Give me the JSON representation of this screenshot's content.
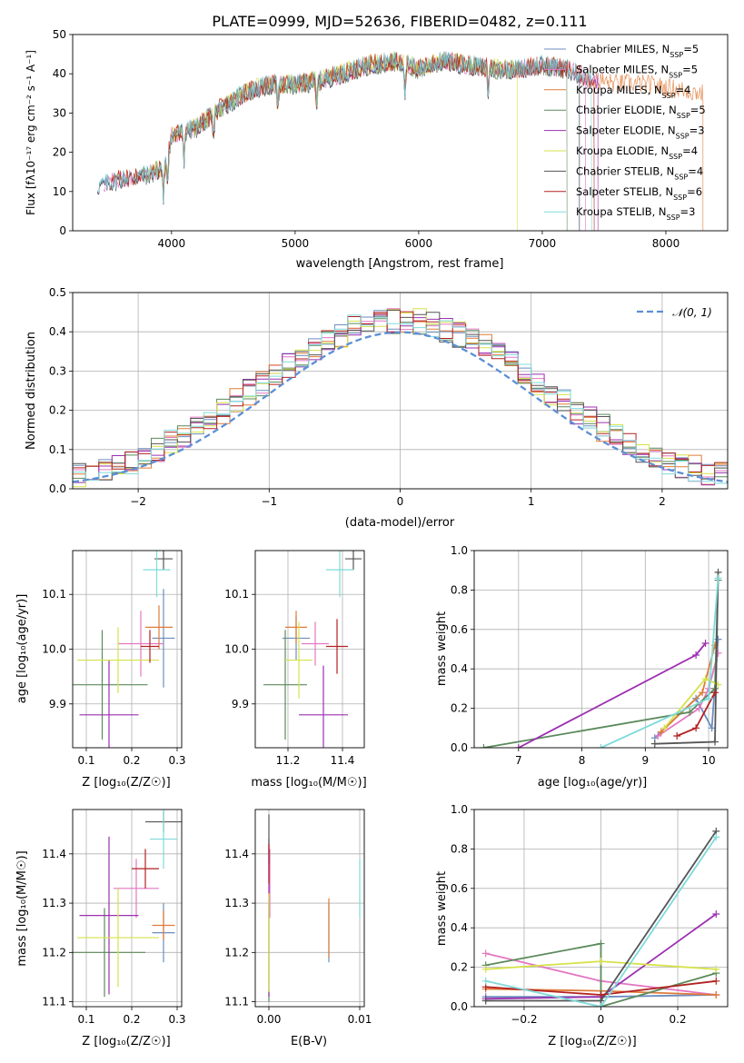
{
  "colors": [
    "#6c8ebf",
    "#e377c2",
    "#e07b39",
    "#5b8a5b",
    "#9b30b0",
    "#d6e24a",
    "#555555",
    "#b22222",
    "#7fdada"
  ],
  "chart_data": [
    {
      "id": "spectrum",
      "type": "line",
      "title": "PLATE=0999, MJD=52636, FIBERID=0482, z=0.111",
      "xlabel": "wavelength [Angstrom, rest frame]",
      "ylabel": "Flux [fλ10⁻¹⁷ erg cm⁻² s⁻¹ A⁻¹]",
      "xlim": [
        3200,
        8500
      ],
      "ylim": [
        0,
        50
      ],
      "xticks": [
        4000,
        5000,
        6000,
        7000,
        8000
      ],
      "yticks": [
        0,
        10,
        20,
        30,
        40,
        50
      ],
      "legend_position": "top-right",
      "legend": [
        "Chabrier MILES, N_SSP=5",
        "Salpeter MILES, N_SSP=5",
        "Kroupa MILES, N_SSP=4",
        "Chabrier ELODIE, N_SSP=5",
        "Salpeter ELODIE, N_SSP=3",
        "Kroupa ELODIE, N_SSP=4",
        "Chabrier STELIB, N_SSP=4",
        "Salpeter STELIB, N_SSP=6",
        "Kroupa STELIB, N_SSP=3"
      ],
      "spectrum_anchors": [
        [
          3400,
          11
        ],
        [
          3600,
          13
        ],
        [
          3800,
          14
        ],
        [
          3950,
          16
        ],
        [
          4000,
          24
        ],
        [
          4200,
          26
        ],
        [
          4400,
          31
        ],
        [
          4600,
          35
        ],
        [
          4800,
          37
        ],
        [
          5000,
          37
        ],
        [
          5200,
          38
        ],
        [
          5400,
          40
        ],
        [
          5600,
          42
        ],
        [
          5800,
          43
        ],
        [
          6000,
          41
        ],
        [
          6200,
          43
        ],
        [
          6400,
          42
        ],
        [
          6600,
          41
        ],
        [
          6800,
          41
        ],
        [
          7000,
          42
        ],
        [
          7200,
          41
        ],
        [
          7400,
          38
        ],
        [
          7600,
          37
        ],
        [
          7800,
          37
        ],
        [
          8000,
          36
        ],
        [
          8200,
          35
        ],
        [
          8400,
          34
        ]
      ],
      "series_ranges": [
        [
          3400,
          7300
        ],
        [
          3450,
          7350
        ],
        [
          3500,
          8300
        ],
        [
          3700,
          7200
        ],
        [
          3400,
          7450
        ],
        [
          3800,
          6800
        ],
        [
          3400,
          7300
        ],
        [
          3500,
          7420
        ],
        [
          3400,
          7400
        ]
      ]
    },
    {
      "id": "residual-histogram",
      "type": "bar",
      "xlabel": "(data-model)/error",
      "ylabel": "Normed distribution",
      "xlim": [
        -2.5,
        2.5
      ],
      "ylim": [
        0,
        0.5
      ],
      "xticks": [
        -2,
        -1,
        0,
        1,
        2
      ],
      "yticks": [
        0.0,
        0.1,
        0.2,
        0.3,
        0.4,
        0.5
      ],
      "legend": [
        "𝒩(0, 1)"
      ],
      "legend_position": "top-right",
      "bin_width": 0.1,
      "series_count": 9,
      "grid": true
    },
    {
      "id": "age-vs-Z",
      "type": "scatter",
      "xlabel": "Z [log₁₀(Z/Z☉)]",
      "ylabel": "age  [log₁₀(age/yr)]",
      "xlim": [
        0.07,
        0.31
      ],
      "ylim": [
        9.82,
        10.18
      ],
      "xticks": [
        0.1,
        0.2,
        0.3
      ],
      "yticks": [
        9.9,
        10.0,
        10.1
      ],
      "points": [
        {
          "x": 0.27,
          "xerr": 0.025,
          "y": 10.02,
          "yerr": 0.09
        },
        {
          "x": 0.22,
          "xerr": 0.05,
          "y": 10.01,
          "yerr": 0.06
        },
        {
          "x": 0.26,
          "xerr": 0.03,
          "y": 10.04,
          "yerr": 0.04
        },
        {
          "x": 0.135,
          "xerr": 0.1,
          "y": 9.935,
          "yerr": 0.1
        },
        {
          "x": 0.15,
          "xerr": 0.065,
          "y": 9.88,
          "yerr": 0.1
        },
        {
          "x": 0.17,
          "xerr": 0.09,
          "y": 9.98,
          "yerr": 0.06
        },
        {
          "x": 0.27,
          "xerr": 0.02,
          "y": 10.165,
          "yerr": 0.02
        },
        {
          "x": 0.24,
          "xerr": 0.02,
          "y": 10.005,
          "yerr": 0.03
        },
        {
          "x": 0.255,
          "xerr": 0.03,
          "y": 10.145,
          "yerr": 0.05
        }
      ]
    },
    {
      "id": "age-vs-mass",
      "type": "scatter",
      "xlabel": "mass [log₁₀(M/M☉)]",
      "xlim": [
        11.08,
        11.48
      ],
      "ylim": [
        9.82,
        10.18
      ],
      "xticks": [
        11.2,
        11.4
      ],
      "yticks": [
        9.9,
        10.0,
        10.1
      ],
      "points": [
        {
          "x": 11.23,
          "xerr": 0.05,
          "y": 10.02,
          "yerr": 0.04
        },
        {
          "x": 11.3,
          "xerr": 0.05,
          "y": 10.01,
          "yerr": 0.04
        },
        {
          "x": 11.23,
          "xerr": 0.04,
          "y": 10.04,
          "yerr": 0.03
        },
        {
          "x": 11.19,
          "xerr": 0.08,
          "y": 9.935,
          "yerr": 0.1
        },
        {
          "x": 11.33,
          "xerr": 0.09,
          "y": 9.88,
          "yerr": 0.09
        },
        {
          "x": 11.24,
          "xerr": 0.05,
          "y": 9.98,
          "yerr": 0.07
        },
        {
          "x": 11.44,
          "xerr": 0.03,
          "y": 10.165,
          "yerr": 0.02
        },
        {
          "x": 11.38,
          "xerr": 0.04,
          "y": 10.005,
          "yerr": 0.05
        },
        {
          "x": 11.39,
          "xerr": 0.05,
          "y": 10.145,
          "yerr": 0.05
        }
      ]
    },
    {
      "id": "mass-weight-vs-age",
      "type": "line",
      "xlabel": "age  [log₁₀(age/yr)]",
      "ylabel": "mass weight",
      "xlim": [
        6.3,
        10.3
      ],
      "ylim": [
        0,
        1.0
      ],
      "xticks": [
        7,
        8,
        9,
        10
      ],
      "yticks": [
        0.0,
        0.2,
        0.4,
        0.6,
        0.8,
        1.0
      ],
      "series": [
        {
          "points": [
            [
              9.15,
              0.05
            ],
            [
              9.8,
              0.25
            ],
            [
              10.05,
              0.1
            ],
            [
              10.15,
              0.55
            ]
          ]
        },
        {
          "points": [
            [
              9.2,
              0.06
            ],
            [
              9.85,
              0.2
            ],
            [
              10.0,
              0.3
            ],
            [
              10.15,
              0.48
            ]
          ]
        },
        {
          "points": [
            [
              9.25,
              0.08
            ],
            [
              9.9,
              0.28
            ],
            [
              10.1,
              0.52
            ]
          ]
        },
        {
          "points": [
            [
              6.45,
              0.0
            ],
            [
              9.7,
              0.18
            ],
            [
              10.1,
              0.3
            ],
            [
              10.15,
              0.85
            ]
          ]
        },
        {
          "points": [
            [
              7.0,
              0.0
            ],
            [
              9.8,
              0.47
            ],
            [
              9.95,
              0.53
            ]
          ]
        },
        {
          "points": [
            [
              9.3,
              0.1
            ],
            [
              9.95,
              0.35
            ],
            [
              10.15,
              0.32
            ]
          ]
        },
        {
          "points": [
            [
              9.15,
              0.02
            ],
            [
              10.1,
              0.03
            ],
            [
              10.15,
              0.89
            ]
          ]
        },
        {
          "points": [
            [
              9.5,
              0.06
            ],
            [
              9.8,
              0.1
            ],
            [
              10.1,
              0.28
            ]
          ]
        },
        {
          "points": [
            [
              8.3,
              0.0
            ],
            [
              10.0,
              0.25
            ],
            [
              10.15,
              0.86
            ]
          ]
        }
      ]
    },
    {
      "id": "mass-vs-Z",
      "type": "scatter",
      "xlabel": "Z [log₁₀(Z/Z☉)]",
      "ylabel": "mass [log₁₀(M/M☉)]",
      "xlim": [
        0.07,
        0.31
      ],
      "ylim": [
        11.09,
        11.49
      ],
      "xticks": [
        0.1,
        0.2,
        0.3
      ],
      "yticks": [
        11.1,
        11.2,
        11.3,
        11.4
      ],
      "points": [
        {
          "x": 0.27,
          "xerr": 0.025,
          "y": 11.24,
          "yerr": 0.06
        },
        {
          "x": 0.21,
          "xerr": 0.05,
          "y": 11.33,
          "yerr": 0.06
        },
        {
          "x": 0.27,
          "xerr": 0.025,
          "y": 11.255,
          "yerr": 0.03
        },
        {
          "x": 0.14,
          "xerr": 0.09,
          "y": 11.2,
          "yerr": 0.09
        },
        {
          "x": 0.15,
          "xerr": 0.065,
          "y": 11.275,
          "yerr": 0.16
        },
        {
          "x": 0.17,
          "xerr": 0.09,
          "y": 11.23,
          "yerr": 0.1
        },
        {
          "x": 0.27,
          "xerr": 0.04,
          "y": 11.465,
          "yerr": 0.02
        },
        {
          "x": 0.23,
          "xerr": 0.03,
          "y": 11.37,
          "yerr": 0.04
        },
        {
          "x": 0.27,
          "xerr": 0.03,
          "y": 11.43,
          "yerr": 0.06
        }
      ]
    },
    {
      "id": "mass-vs-ebv",
      "type": "scatter",
      "xlabel": "E(B-V)",
      "xlim": [
        -0.0015,
        0.0105
      ],
      "ylim": [
        11.09,
        11.49
      ],
      "xticks": [
        0.0,
        0.01
      ],
      "xtick_labels": [
        "0.00",
        "0.01"
      ],
      "yticks": [
        11.1,
        11.2,
        11.3,
        11.4
      ],
      "points": [
        {
          "x": 0.0066,
          "y": 11.24,
          "yerr": 0.06
        },
        {
          "x": 0.0001,
          "y": 11.34,
          "yerr": 0.07
        },
        {
          "x": 0.0066,
          "y": 11.25,
          "yerr": 0.06
        },
        {
          "x": 0.0,
          "y": 11.2,
          "yerr": 0.1
        },
        {
          "x": 0.0,
          "y": 11.27,
          "yerr": 0.16
        },
        {
          "x": 0.0,
          "y": 11.22,
          "yerr": 0.1
        },
        {
          "x": 0.0,
          "y": 11.43,
          "yerr": 0.05
        },
        {
          "x": 0.0,
          "y": 11.38,
          "yerr": 0.04
        },
        {
          "x": 0.01,
          "y": 11.33,
          "yerr": 0.06
        }
      ]
    },
    {
      "id": "mass-weight-vs-Z",
      "type": "line",
      "xlabel": "Z [log₁₀(Z/Z☉)]",
      "ylabel": "mass weight",
      "xlim": [
        -0.33,
        0.33
      ],
      "ylim": [
        0,
        1.0
      ],
      "xticks": [
        -0.2,
        0.0,
        0.2
      ],
      "yticks": [
        0.0,
        0.2,
        0.4,
        0.6,
        0.8,
        1.0
      ],
      "series": [
        {
          "points": [
            [
              -0.3,
              0.05
            ],
            [
              0.0,
              0.05
            ],
            [
              0.3,
              0.06
            ]
          ]
        },
        {
          "points": [
            [
              -0.3,
              0.27
            ],
            [
              0.0,
              0.13
            ],
            [
              0.3,
              0.06
            ]
          ]
        },
        {
          "points": [
            [
              -0.3,
              0.09
            ],
            [
              0.0,
              0.08
            ],
            [
              0.3,
              0.06
            ]
          ]
        },
        {
          "points": [
            [
              -0.3,
              0.21
            ],
            [
              0.0,
              0.32
            ],
            [
              0.0,
              0.0
            ],
            [
              0.3,
              0.17
            ]
          ]
        },
        {
          "points": [
            [
              -0.3,
              0.04
            ],
            [
              0.0,
              0.05
            ],
            [
              0.3,
              0.47
            ]
          ]
        },
        {
          "points": [
            [
              -0.3,
              0.19
            ],
            [
              0.0,
              0.23
            ],
            [
              0.3,
              0.19
            ]
          ]
        },
        {
          "points": [
            [
              -0.3,
              0.03
            ],
            [
              0.0,
              0.03
            ],
            [
              0.3,
              0.89
            ]
          ]
        },
        {
          "points": [
            [
              -0.3,
              0.1
            ],
            [
              0.0,
              0.06
            ],
            [
              0.3,
              0.13
            ]
          ]
        },
        {
          "points": [
            [
              -0.3,
              0.13
            ],
            [
              0.0,
              0.0
            ],
            [
              0.3,
              0.86
            ]
          ]
        }
      ]
    }
  ]
}
